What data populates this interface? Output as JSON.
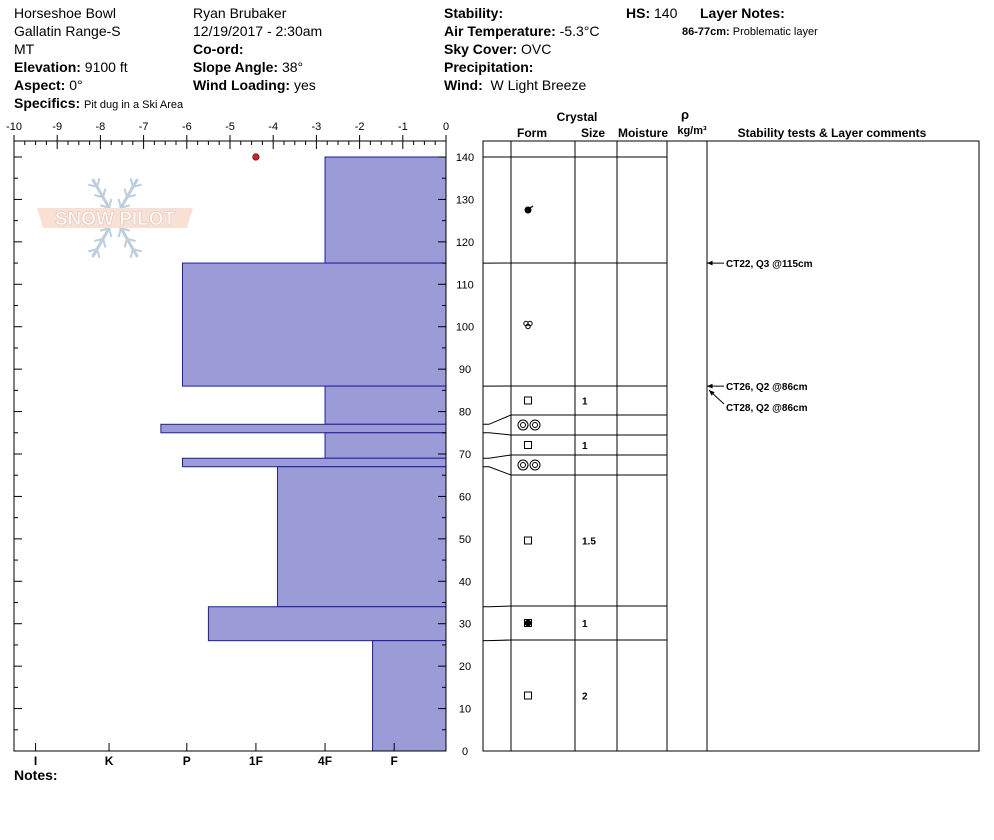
{
  "header": {
    "location": "Horseshoe Bowl",
    "range": "Gallatin Range-S",
    "state": "MT",
    "elevation_label": "Elevation:",
    "elevation": "9100 ft",
    "aspect_label": "Aspect:",
    "aspect": "0°",
    "specifics_label": "Specifics:",
    "specifics": "Pit dug in a Ski Area",
    "observer": "Ryan Brubaker",
    "datetime": "12/19/2017 - 2:30am",
    "coord_label": "Co-ord:",
    "slope_label": "Slope Angle:",
    "slope": "38°",
    "wind_loading_label": "Wind Loading:",
    "wind_loading": "yes",
    "stability_label": "Stability:",
    "air_temp_label": "Air Temperature:",
    "air_temp": "-5.3°C",
    "sky_label": "Sky Cover:",
    "sky": "OVC",
    "precip_label": "Precipitation:",
    "wind_label": "Wind:",
    "wind": "W Light Breeze",
    "hs_label": "HS:",
    "hs": "140",
    "layer_notes_label": "Layer Notes:",
    "layer_note_range": "86-77cm:",
    "layer_note_text": "Problematic layer"
  },
  "notes_label": "Notes:",
  "logo_text": "SNOW PILOT",
  "colors": {
    "bar": "#9b9bd7",
    "bar_edge": "#1e1e9a",
    "temp_point": "#cc2222",
    "grid": "#000000"
  },
  "chart_data": {
    "type": "bar",
    "x_ticks": [
      "-10",
      "-9",
      "-8",
      "-7",
      "-6",
      "-5",
      "-4",
      "-3",
      "-2",
      "-1",
      "0"
    ],
    "xlim": [
      -10,
      0
    ],
    "hardness_labels": [
      "I",
      "K",
      "P",
      "1F",
      "4F",
      "F"
    ],
    "hardness_positions": [
      -9.5,
      -7.8,
      -6,
      -4.4,
      -2.8,
      -1.2
    ],
    "ylim": [
      0,
      140
    ],
    "y_ticks": [
      0,
      10,
      20,
      30,
      40,
      50,
      60,
      70,
      80,
      90,
      100,
      110,
      120,
      130,
      140
    ],
    "temperature_point": {
      "depth": 140,
      "temp": -4.4
    },
    "layers": [
      {
        "top": 140,
        "bottom": 115,
        "hardness_x": -2.8,
        "form": "rounded-grains-icon",
        "size": ""
      },
      {
        "top": 115,
        "bottom": 86,
        "hardness_x": -6.1,
        "form": "precip-particles-icon",
        "size": ""
      },
      {
        "top": 86,
        "bottom": 77,
        "hardness_x": -2.8,
        "form": "faceted-icon",
        "size": "1"
      },
      {
        "top": 77,
        "bottom": 75,
        "hardness_x": -6.6,
        "form": "surface-hoar-icon",
        "size": ""
      },
      {
        "top": 75,
        "bottom": 69,
        "hardness_x": -2.8,
        "form": "faceted-icon",
        "size": "1"
      },
      {
        "top": 69,
        "bottom": 67,
        "hardness_x": -6.1,
        "form": "surface-hoar-icon",
        "size": ""
      },
      {
        "top": 67,
        "bottom": 34,
        "hardness_x": -3.9,
        "form": "faceted-icon",
        "size": "1.5"
      },
      {
        "top": 34,
        "bottom": 26,
        "hardness_x": -5.5,
        "form": "mixed-forms-icon",
        "size": "1"
      },
      {
        "top": 26,
        "bottom": 0,
        "hardness_x": -1.7,
        "form": "faceted-icon",
        "size": "2"
      }
    ],
    "columns": {
      "crystal": "Crystal",
      "form": "Form",
      "size": "Size",
      "moisture": "Moisture",
      "rho": "ρ",
      "density_unit": "kg/m³",
      "stability": "Stability tests & Layer comments"
    },
    "stability_tests": [
      {
        "label": "CT22, Q3 @115cm",
        "depth": 115
      },
      {
        "label": "CT26, Q2 @86cm",
        "depth": 86
      },
      {
        "label": "CT28, Q2 @86cm",
        "depth": 86
      }
    ]
  }
}
